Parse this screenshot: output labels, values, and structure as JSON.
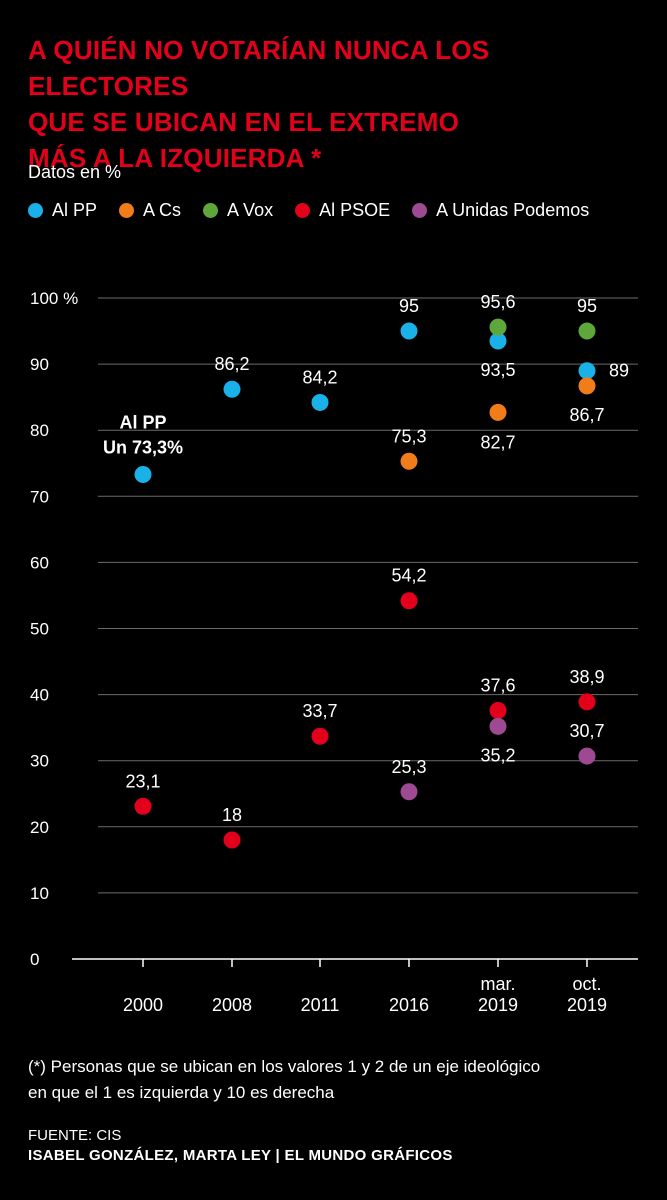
{
  "title_lines": [
    "A QUIÉN NO VOTARÍAN NUNCA LOS ELECTORES",
    "QUE SE UBICAN EN EL EXTREMO",
    "MÁS A LA IZQUIERDA"
  ],
  "title_star": "*",
  "subtitle": "Datos en %",
  "footnote_lines": [
    "(*) Personas que se ubican en los valores 1 y 2 de un eje ideológico",
    "en que el 1 es izquierda y 10 es derecha"
  ],
  "source": "FUENTE: CIS",
  "credits": "ISABEL GONZÁLEZ, MARTA LEY | EL MUNDO GRÁFICOS",
  "chart_data": {
    "type": "scatter",
    "categories": [
      [
        "2000"
      ],
      [
        "2008"
      ],
      [
        "2011"
      ],
      [
        "2016"
      ],
      [
        "mar.",
        "2019"
      ],
      [
        "oct.",
        "2019"
      ]
    ],
    "ylim": [
      0,
      100
    ],
    "yticks": [
      0,
      10,
      20,
      30,
      40,
      50,
      60,
      70,
      80,
      90,
      100
    ],
    "ytick_labels": [
      "0",
      "10",
      "20",
      "30",
      "40",
      "50",
      "60",
      "70",
      "80",
      "90",
      "100 %"
    ],
    "grid": true,
    "legend_position": "top",
    "series": [
      {
        "name": "Al PP",
        "color": "#1ab0e8",
        "values": [
          73.3,
          86.2,
          84.2,
          95,
          93.5,
          89
        ],
        "labels": [
          "",
          "86,2",
          "84,2",
          "95",
          "93,5",
          "89"
        ]
      },
      {
        "name": "A Cs",
        "color": "#f07d19",
        "values": [
          null,
          null,
          null,
          75.3,
          82.7,
          86.7
        ],
        "labels": [
          "",
          "",
          "",
          "75,3",
          "82,7",
          "86,7"
        ]
      },
      {
        "name": "A Vox",
        "color": "#5ea83b",
        "values": [
          null,
          null,
          null,
          null,
          95.6,
          95
        ],
        "labels": [
          "",
          "",
          "",
          "",
          "95,6",
          "95"
        ]
      },
      {
        "name": "Al PSOE",
        "color": "#e3001b",
        "values": [
          23.1,
          18,
          33.7,
          54.2,
          37.6,
          38.9
        ],
        "labels": [
          "23,1",
          "18",
          "33,7",
          "54,2",
          "37,6",
          "38,9"
        ]
      },
      {
        "name": "A Unidas Podemos",
        "color": "#9e4a93",
        "values": [
          null,
          null,
          null,
          25.3,
          35.2,
          30.7
        ],
        "labels": [
          "",
          "",
          "",
          "25,3",
          "35,2",
          "30,7"
        ]
      }
    ],
    "annotation": {
      "lines": [
        "Al PP",
        "Un 73,3%"
      ]
    }
  }
}
